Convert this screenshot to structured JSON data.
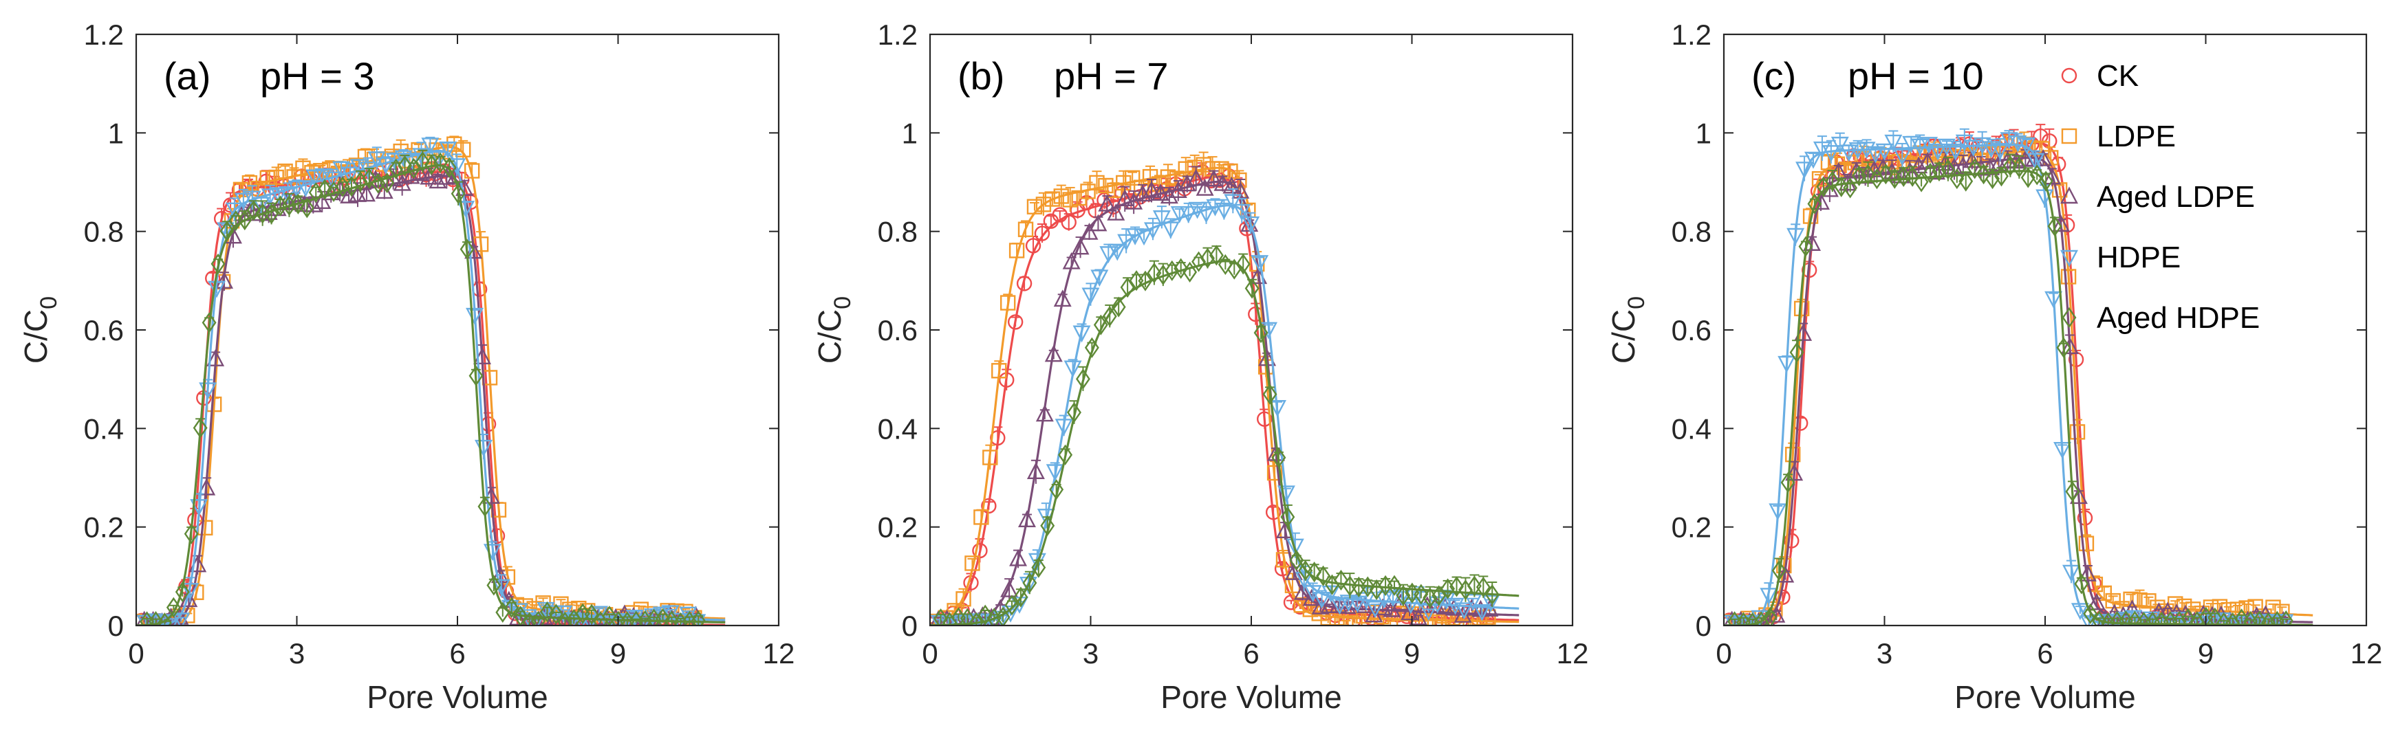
{
  "figure": {
    "colors": {
      "CK": "#ee4b4b",
      "LDPE": "#f39a2b",
      "Aged LDPE": "#7b4d78",
      "HDPE": "#69aee3",
      "Aged HDPE": "#5f8a37"
    },
    "markers": {
      "CK": "circle",
      "LDPE": "square",
      "Aged LDPE": "triangle-up",
      "HDPE": "triangle-down",
      "Aged HDPE": "diamond"
    }
  },
  "chart_data": [
    {
      "type": "line",
      "panel": "(a)",
      "title": "pH = 3",
      "xlabel": "Pore Volume",
      "ylabel": "C/C0",
      "ylabel_main": "C/C",
      "ylabel_sub": "0",
      "xlim": [
        0,
        12
      ],
      "ylim": [
        0,
        1.2
      ],
      "xticks": [
        "0",
        "3",
        "6",
        "9",
        "12"
      ],
      "yticks": [
        "0",
        "0.2",
        "0.4",
        "0.6",
        "0.8",
        "1",
        "1.2"
      ],
      "legend": null,
      "series": [
        {
          "name": "CK",
          "t0": 1.25,
          "k1": 0.13,
          "plateau_start": 0.88,
          "plateau_end": 0.93,
          "t1": 6.55,
          "k2": 0.13,
          "tail": 0.005,
          "tail_decay": 1.0
        },
        {
          "name": "LDPE",
          "t0": 1.45,
          "k1": 0.13,
          "plateau_start": 0.88,
          "plateau_end": 0.99,
          "t1": 6.6,
          "k2": 0.13,
          "tail": 0.035,
          "tail_decay": 0.6
        },
        {
          "name": "Aged LDPE",
          "t0": 1.4,
          "k1": 0.14,
          "plateau_start": 0.83,
          "plateau_end": 0.93,
          "t1": 6.5,
          "k2": 0.13,
          "tail": 0.02,
          "tail_decay": 0.7
        },
        {
          "name": "HDPE",
          "t0": 1.3,
          "k1": 0.13,
          "plateau_start": 0.84,
          "plateau_end": 0.99,
          "t1": 6.4,
          "k2": 0.14,
          "tail": 0.025,
          "tail_decay": 0.5
        },
        {
          "name": "Aged HDPE",
          "t0": 1.2,
          "k1": 0.15,
          "plateau_start": 0.8,
          "plateau_end": 0.96,
          "t1": 6.35,
          "k2": 0.13,
          "tail": 0.02,
          "tail_decay": 0.7
        }
      ]
    },
    {
      "type": "line",
      "panel": "(b)",
      "title": "pH = 7",
      "xlabel": "Pore Volume",
      "ylabel": "C/C0",
      "ylabel_main": "C/C",
      "ylabel_sub": "0",
      "xlim": [
        0,
        12
      ],
      "ylim": [
        0,
        1.2
      ],
      "xticks": [
        "0",
        "3",
        "6",
        "9",
        "12"
      ],
      "yticks": [
        "0",
        "0.2",
        "0.4",
        "0.6",
        "0.8",
        "1",
        "1.2"
      ],
      "legend": null,
      "series": [
        {
          "name": "CK",
          "t0": 1.3,
          "k1": 0.25,
          "plateau_start": 0.8,
          "plateau_end": 0.94,
          "t1": 6.2,
          "k2": 0.16,
          "tail": 0.03,
          "tail_decay": 0.6
        },
        {
          "name": "LDPE",
          "t0": 1.2,
          "k1": 0.22,
          "plateau_start": 0.85,
          "plateau_end": 0.95,
          "t1": 6.3,
          "k2": 0.16,
          "tail": 0.02,
          "tail_decay": 0.6
        },
        {
          "name": "Aged LDPE",
          "t0": 2.1,
          "k1": 0.28,
          "plateau_start": 0.82,
          "plateau_end": 0.93,
          "t1": 6.35,
          "k2": 0.18,
          "tail": 0.04,
          "tail_decay": 0.4
        },
        {
          "name": "HDPE",
          "t0": 2.45,
          "k1": 0.3,
          "plateau_start": 0.75,
          "plateau_end": 0.89,
          "t1": 6.45,
          "k2": 0.18,
          "tail": 0.06,
          "tail_decay": 0.35
        },
        {
          "name": "Aged HDPE",
          "t0": 2.5,
          "k1": 0.34,
          "plateau_start": 0.66,
          "plateau_end": 0.77,
          "t1": 6.4,
          "k2": 0.18,
          "tail": 0.09,
          "tail_decay": 0.25
        }
      ]
    },
    {
      "type": "line",
      "panel": "(c)",
      "title": "pH = 10",
      "xlabel": "Pore Volume",
      "ylabel": "C/C0",
      "ylabel_main": "C/C",
      "ylabel_sub": "0",
      "xlim": [
        0,
        12
      ],
      "ylim": [
        0,
        1.2
      ],
      "xticks": [
        "0",
        "3",
        "6",
        "9",
        "12"
      ],
      "yticks": [
        "0",
        "0.2",
        "0.4",
        "0.6",
        "0.8",
        "1",
        "1.2"
      ],
      "legend": {
        "placement": "top-right",
        "entries": [
          "CK",
          "LDPE",
          "Aged LDPE",
          "HDPE",
          "Aged HDPE"
        ]
      },
      "series": [
        {
          "name": "CK",
          "t0": 1.45,
          "k1": 0.12,
          "plateau_start": 0.93,
          "plateau_end": 0.99,
          "t1": 6.6,
          "k2": 0.12,
          "tail": 0.005,
          "tail_decay": 1.0
        },
        {
          "name": "LDPE",
          "t0": 1.35,
          "k1": 0.12,
          "plateau_start": 0.93,
          "plateau_end": 0.97,
          "t1": 6.55,
          "k2": 0.12,
          "tail": 0.045,
          "tail_decay": 0.5
        },
        {
          "name": "Aged LDPE",
          "t0": 1.4,
          "k1": 0.13,
          "plateau_start": 0.9,
          "plateau_end": 0.96,
          "t1": 6.5,
          "k2": 0.12,
          "tail": 0.02,
          "tail_decay": 0.7
        },
        {
          "name": "HDPE",
          "t0": 1.15,
          "k1": 0.12,
          "plateau_start": 0.96,
          "plateau_end": 0.98,
          "t1": 6.25,
          "k2": 0.12,
          "tail": 0.005,
          "tail_decay": 1.0
        },
        {
          "name": "Aged HDPE",
          "t0": 1.3,
          "k1": 0.13,
          "plateau_start": 0.89,
          "plateau_end": 0.93,
          "t1": 6.4,
          "k2": 0.12,
          "tail": 0.005,
          "tail_decay": 1.0
        }
      ]
    }
  ]
}
